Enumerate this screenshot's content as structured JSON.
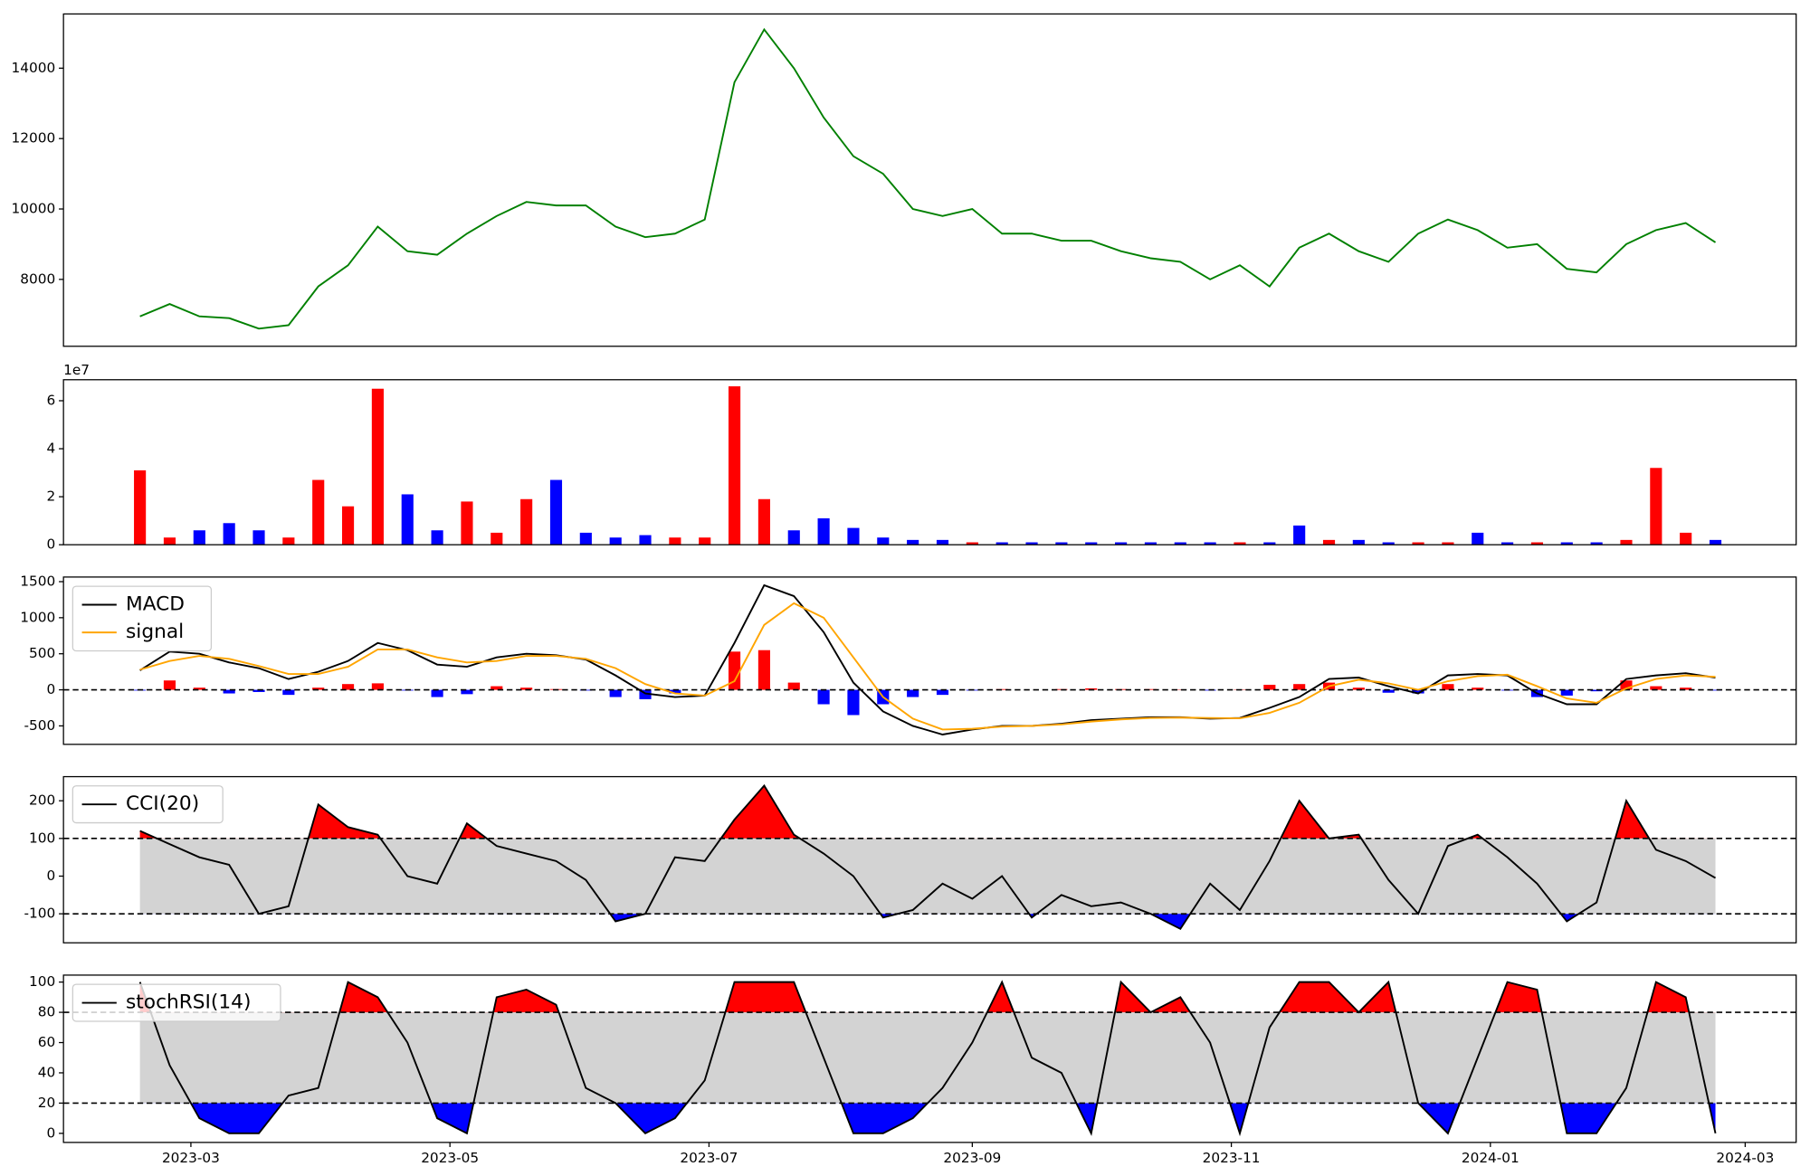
{
  "chart_data": [
    {
      "type": "line",
      "color": "green",
      "x": [
        47,
        54,
        61,
        68,
        75,
        82,
        89,
        96,
        103,
        110,
        117,
        124,
        131,
        138,
        145,
        152,
        159,
        166,
        173,
        180,
        187,
        194,
        201,
        208,
        215,
        222,
        229,
        236,
        243,
        250,
        257,
        264,
        271,
        278,
        285,
        292,
        299,
        306,
        313,
        320,
        327,
        334,
        341,
        348,
        355,
        362,
        369,
        376,
        383,
        390,
        397,
        404,
        411,
        418
      ],
      "values": [
        6950,
        7300,
        6950,
        6900,
        6600,
        6700,
        7800,
        8400,
        9500,
        8800,
        8700,
        9300,
        9800,
        10200,
        10100,
        10100,
        9500,
        9200,
        9300,
        9700,
        13600,
        15100,
        14000,
        12600,
        11500,
        11000,
        10000,
        9800,
        10000,
        9300,
        9300,
        9100,
        9100,
        8800,
        8600,
        8500,
        8000,
        8400,
        7800,
        8900,
        9300,
        8800,
        8500,
        9300,
        9700,
        9400,
        8900,
        9000,
        8300,
        8200,
        9000,
        9400,
        9600,
        9050
      ],
      "xlim": [
        29,
        437
      ],
      "ylim": [
        6100,
        15540
      ],
      "yticks": [
        8000,
        10000,
        12000,
        14000
      ]
    },
    {
      "type": "bar",
      "y_offset_label": "1e7",
      "x": [
        47,
        54,
        61,
        68,
        75,
        82,
        89,
        96,
        103,
        110,
        117,
        124,
        131,
        138,
        145,
        152,
        159,
        166,
        173,
        180,
        187,
        194,
        201,
        208,
        215,
        222,
        229,
        236,
        243,
        250,
        257,
        264,
        271,
        278,
        285,
        292,
        299,
        306,
        313,
        320,
        327,
        334,
        341,
        348,
        355,
        362,
        369,
        376,
        383,
        390,
        397,
        404,
        411,
        418
      ],
      "values": [
        31000000,
        3000000,
        6000000,
        9000000,
        6000000,
        3000000,
        27000000,
        16000000,
        65000000,
        21000000,
        6000000,
        18000000,
        5000000,
        19000000,
        27000000,
        5000000,
        3000000,
        4000000,
        3000000,
        3000000,
        66000000,
        19000000,
        6000000,
        11000000,
        7000000,
        3000000,
        2000000,
        2000000,
        1000000,
        1000000,
        1000000,
        1000000,
        1000000,
        1000000,
        1000000,
        1000000,
        1000000,
        1000000,
        1000000,
        8000000,
        2000000,
        2000000,
        1000000,
        1000000,
        1000000,
        5000000,
        1000000,
        1000000,
        1000000,
        1000000,
        2000000,
        32000000,
        5000000,
        2000000
      ],
      "colors": [
        "red",
        "red",
        "blue",
        "blue",
        "blue",
        "red",
        "red",
        "red",
        "red",
        "blue",
        "blue",
        "red",
        "red",
        "red",
        "blue",
        "blue",
        "blue",
        "blue",
        "red",
        "red",
        "red",
        "red",
        "blue",
        "blue",
        "blue",
        "blue",
        "blue",
        "blue",
        "red",
        "blue",
        "blue",
        "blue",
        "blue",
        "blue",
        "blue",
        "blue",
        "blue",
        "red",
        "blue",
        "blue",
        "red",
        "blue",
        "blue",
        "red",
        "red",
        "blue",
        "blue",
        "red",
        "blue",
        "blue",
        "red",
        "red",
        "red",
        "blue"
      ],
      "xlim": [
        29,
        437
      ],
      "ylim": [
        0,
        68750000
      ],
      "yticks": [
        {
          "value": 0,
          "label": "0"
        },
        {
          "value": 20000000,
          "label": "2"
        },
        {
          "value": 40000000,
          "label": "4"
        },
        {
          "value": 60000000,
          "label": "6"
        }
      ]
    },
    {
      "type": "macd",
      "x": [
        47,
        54,
        61,
        68,
        75,
        82,
        89,
        96,
        103,
        110,
        117,
        124,
        131,
        138,
        145,
        152,
        159,
        166,
        173,
        180,
        187,
        194,
        201,
        208,
        215,
        222,
        229,
        236,
        243,
        250,
        257,
        264,
        271,
        278,
        285,
        292,
        299,
        306,
        313,
        320,
        327,
        334,
        341,
        348,
        355,
        362,
        369,
        376,
        383,
        390,
        397,
        404,
        411,
        418
      ],
      "series": [
        {
          "name": "MACD",
          "color": "black",
          "values": [
            270,
            530,
            500,
            380,
            300,
            150,
            250,
            400,
            650,
            550,
            350,
            320,
            450,
            500,
            480,
            420,
            200,
            -50,
            -100,
            -80,
            650,
            1450,
            1300,
            800,
            100,
            -300,
            -500,
            -620,
            -550,
            -500,
            -500,
            -470,
            -420,
            -400,
            -380,
            -380,
            -400,
            -390,
            -250,
            -100,
            150,
            170,
            50,
            -50,
            200,
            220,
            200,
            -50,
            -200,
            -200,
            150,
            200,
            230,
            170
          ]
        },
        {
          "name": "signal",
          "color": "orange",
          "values": [
            280,
            400,
            470,
            430,
            330,
            220,
            220,
            320,
            560,
            560,
            450,
            380,
            400,
            470,
            470,
            430,
            300,
            80,
            -50,
            -80,
            120,
            900,
            1200,
            1000,
            450,
            -100,
            -400,
            -550,
            -540,
            -510,
            -500,
            -480,
            -440,
            -410,
            -390,
            -385,
            -390,
            -395,
            -320,
            -180,
            50,
            140,
            90,
            0,
            120,
            190,
            210,
            50,
            -120,
            -180,
            20,
            150,
            200,
            180
          ]
        }
      ],
      "histogram": {
        "values": [
          -10,
          130,
          30,
          -50,
          -30,
          -70,
          30,
          80,
          90,
          -10,
          -100,
          -60,
          50,
          30,
          10,
          -10,
          -100,
          -130,
          -50,
          0,
          530,
          550,
          100,
          -200,
          -350,
          -200,
          -100,
          -70,
          -10,
          10,
          0,
          10,
          20,
          10,
          10,
          5,
          -10,
          5,
          70,
          80,
          100,
          30,
          -40,
          -50,
          80,
          30,
          -10,
          -100,
          -80,
          -20,
          130,
          50,
          30,
          -10
        ],
        "pos_color": "red",
        "neg_color": "blue"
      },
      "hline": 0,
      "legend": "upper left",
      "xlim": [
        29,
        437
      ],
      "ylim": [
        -756,
        1564
      ],
      "yticks": [
        -500,
        0,
        500,
        1000,
        1500
      ]
    },
    {
      "type": "oscillator",
      "x": [
        47,
        54,
        61,
        68,
        75,
        82,
        89,
        96,
        103,
        110,
        117,
        124,
        131,
        138,
        145,
        152,
        159,
        166,
        173,
        180,
        187,
        194,
        201,
        208,
        215,
        222,
        229,
        236,
        243,
        250,
        257,
        264,
        271,
        278,
        285,
        292,
        299,
        306,
        313,
        320,
        327,
        334,
        341,
        348,
        355,
        362,
        369,
        376,
        383,
        390,
        397,
        404,
        411,
        418
      ],
      "series": [
        {
          "name": "CCI(20)",
          "color": "black",
          "values": [
            120,
            85,
            50,
            30,
            -100,
            -80,
            190,
            130,
            110,
            0,
            -20,
            140,
            80,
            60,
            40,
            -10,
            -120,
            -100,
            50,
            40,
            150,
            240,
            110,
            60,
            0,
            -110,
            -90,
            -20,
            -60,
            0,
            -110,
            -50,
            -80,
            -70,
            -100,
            -140,
            -20,
            -90,
            40,
            200,
            100,
            110,
            -10,
            -100,
            80,
            110,
            50,
            -20,
            -120,
            -70,
            200,
            70,
            40,
            -5
          ]
        }
      ],
      "upper_level": 100,
      "lower_level": -100,
      "upper_color": "red",
      "lower_color": "blue",
      "band_color": "lightgray",
      "legend": "upper left",
      "xlim": [
        29,
        437
      ],
      "ylim": [
        -177,
        264
      ],
      "yticks": [
        -100,
        0,
        100,
        200
      ]
    },
    {
      "type": "oscillator",
      "x": [
        47,
        54,
        61,
        68,
        75,
        82,
        89,
        96,
        103,
        110,
        117,
        124,
        131,
        138,
        145,
        152,
        159,
        166,
        173,
        180,
        187,
        194,
        201,
        208,
        215,
        222,
        229,
        236,
        243,
        250,
        257,
        264,
        271,
        278,
        285,
        292,
        299,
        306,
        313,
        320,
        327,
        334,
        341,
        348,
        355,
        362,
        369,
        376,
        383,
        390,
        397,
        404,
        411,
        418
      ],
      "series": [
        {
          "name": "stochRSI(14)",
          "color": "black",
          "values": [
            100,
            45,
            10,
            0,
            0,
            25,
            30,
            100,
            90,
            60,
            10,
            0,
            90,
            95,
            85,
            30,
            20,
            0,
            10,
            35,
            100,
            100,
            100,
            50,
            0,
            0,
            10,
            30,
            60,
            100,
            50,
            40,
            0,
            100,
            80,
            90,
            60,
            0,
            70,
            100,
            100,
            80,
            100,
            20,
            0,
            50,
            100,
            95,
            0,
            0,
            30,
            100,
            90,
            0
          ]
        }
      ],
      "upper_level": 80,
      "lower_level": 20,
      "upper_color": "red",
      "lower_color": "blue",
      "band_color": "lightgray",
      "legend": "upper left",
      "xlim": [
        29,
        437
      ],
      "ylim": [
        -6,
        104.6
      ],
      "yticks": [
        0,
        20,
        40,
        60,
        80,
        100
      ],
      "xticks": [
        {
          "value": 59,
          "label": "2023-03"
        },
        {
          "value": 120,
          "label": "2023-05"
        },
        {
          "value": 181,
          "label": "2023-07"
        },
        {
          "value": 243,
          "label": "2023-09"
        },
        {
          "value": 304,
          "label": "2023-11"
        },
        {
          "value": 365,
          "label": "2024-01"
        },
        {
          "value": 425,
          "label": "2024-03"
        }
      ]
    }
  ]
}
